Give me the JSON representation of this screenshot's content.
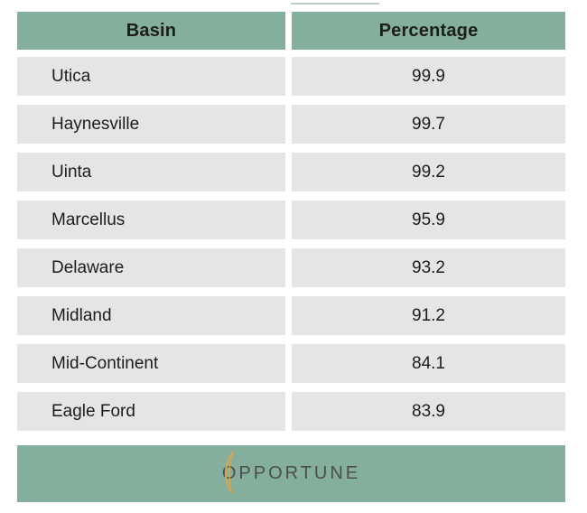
{
  "table": {
    "columns": [
      {
        "label": "Basin"
      },
      {
        "label": "Percentage"
      }
    ],
    "rows": [
      {
        "basin": "Utica",
        "percentage": "99.9"
      },
      {
        "basin": "Haynesville",
        "percentage": "99.7"
      },
      {
        "basin": "Uinta",
        "percentage": "99.2"
      },
      {
        "basin": "Marcellus",
        "percentage": "95.9"
      },
      {
        "basin": "Delaware",
        "percentage": "93.2"
      },
      {
        "basin": "Midland",
        "percentage": "91.2"
      },
      {
        "basin": "Mid-Continent",
        "percentage": "84.1"
      },
      {
        "basin": "Eagle Ford",
        "percentage": "83.9"
      }
    ]
  },
  "footer": {
    "logo_text": "OPPORTUNE",
    "logo_icon": "gold-leaf"
  },
  "colors": {
    "header_green": "#84AF9C",
    "row_gray": "#E4E5E4",
    "text_dark": "#1D1D1B",
    "logo_gray": "#4D4D4F",
    "logo_gold": "#D9A64E"
  },
  "chart_data": {
    "type": "table",
    "title": "",
    "columns": [
      "Basin",
      "Percentage"
    ],
    "rows": [
      [
        "Utica",
        99.9
      ],
      [
        "Haynesville",
        99.7
      ],
      [
        "Uinta",
        99.2
      ],
      [
        "Marcellus",
        95.9
      ],
      [
        "Delaware",
        93.2
      ],
      [
        "Midland",
        91.2
      ],
      [
        "Mid-Continent",
        84.1
      ],
      [
        "Eagle Ford",
        83.9
      ]
    ]
  }
}
